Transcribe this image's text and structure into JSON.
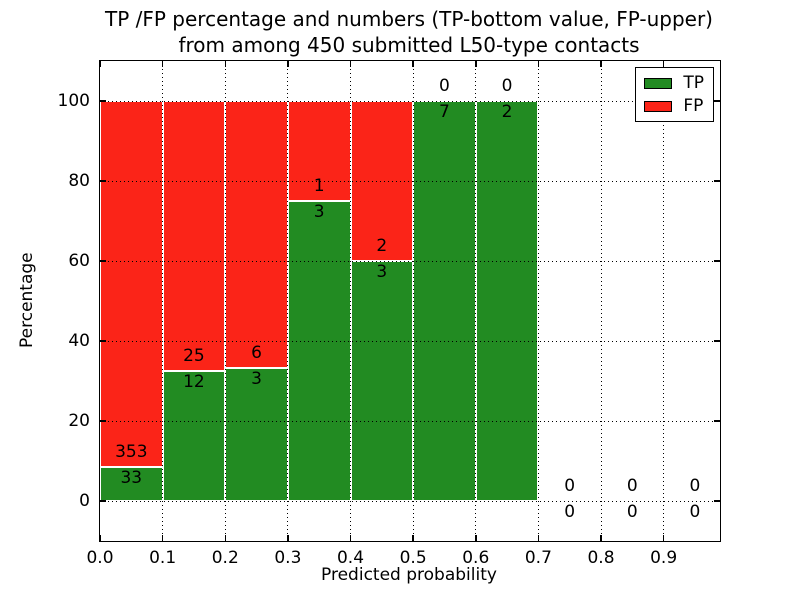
{
  "chart_data": {
    "type": "bar",
    "stacked": true,
    "title_line1": "TP /FP percentage and numbers (TP-bottom value, FP-upper)",
    "title_line2": "from among 450 submitted L50-type contacts",
    "xlabel": "Predicted probability",
    "ylabel": "Percentage",
    "xlim": [
      0,
      0.99
    ],
    "ylim": [
      -10,
      110
    ],
    "bin_width": 0.1,
    "grid": "dotted",
    "legend_position": "upper-right",
    "colors": {
      "tp": "#228b22",
      "fp": "#fb2418",
      "bar_edge": "#ffffff",
      "grid": "#000000",
      "text": "#000000"
    },
    "legend": {
      "entries": [
        {
          "label": "TP",
          "color": "#228b22"
        },
        {
          "label": "FP",
          "color": "#fb2418"
        }
      ]
    },
    "xticks": [
      {
        "value": 0.0,
        "label": "0.0"
      },
      {
        "value": 0.1,
        "label": "0.1"
      },
      {
        "value": 0.2,
        "label": "0.2"
      },
      {
        "value": 0.3,
        "label": "0.3"
      },
      {
        "value": 0.4,
        "label": "0.4"
      },
      {
        "value": 0.5,
        "label": "0.5"
      },
      {
        "value": 0.6,
        "label": "0.6"
      },
      {
        "value": 0.7,
        "label": "0.7"
      },
      {
        "value": 0.8,
        "label": "0.8"
      },
      {
        "value": 0.9,
        "label": "0.9"
      }
    ],
    "yticks": [
      {
        "value": 0,
        "label": "0"
      },
      {
        "value": 20,
        "label": "20"
      },
      {
        "value": 40,
        "label": "40"
      },
      {
        "value": 60,
        "label": "60"
      },
      {
        "value": 80,
        "label": "80"
      },
      {
        "value": 100,
        "label": "100"
      }
    ],
    "bins": [
      {
        "x_start": 0.0,
        "tp": 33,
        "fp": 353,
        "tp_pct": 8.55,
        "fp_pct": 91.45
      },
      {
        "x_start": 0.1,
        "tp": 12,
        "fp": 25,
        "tp_pct": 32.43,
        "fp_pct": 67.57
      },
      {
        "x_start": 0.2,
        "tp": 3,
        "fp": 6,
        "tp_pct": 33.33,
        "fp_pct": 66.67
      },
      {
        "x_start": 0.3,
        "tp": 3,
        "fp": 1,
        "tp_pct": 75,
        "fp_pct": 25
      },
      {
        "x_start": 0.4,
        "tp": 3,
        "fp": 2,
        "tp_pct": 60,
        "fp_pct": 40
      },
      {
        "x_start": 0.5,
        "tp": 7,
        "fp": 0,
        "tp_pct": 100,
        "fp_pct": 0
      },
      {
        "x_start": 0.6,
        "tp": 2,
        "fp": 0,
        "tp_pct": 100,
        "fp_pct": 0
      },
      {
        "x_start": 0.7,
        "tp": 0,
        "fp": 0,
        "tp_pct": 0,
        "fp_pct": 0
      },
      {
        "x_start": 0.8,
        "tp": 0,
        "fp": 0,
        "tp_pct": 0,
        "fp_pct": 0
      },
      {
        "x_start": 0.9,
        "tp": 0,
        "fp": 0,
        "tp_pct": 0,
        "fp_pct": 0
      }
    ]
  }
}
